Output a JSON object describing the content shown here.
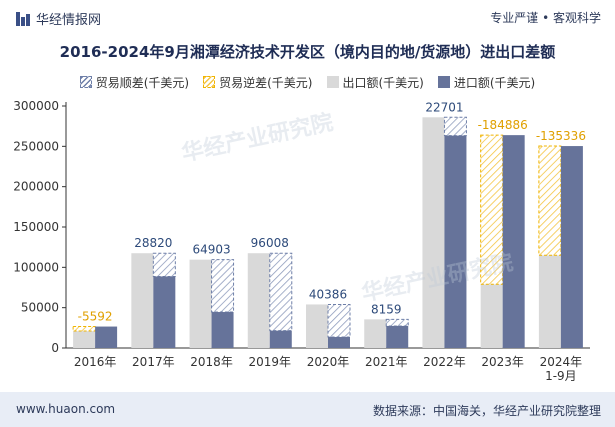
{
  "header": {
    "brand": "华经情报网",
    "slogan": "专业严谨 • 客观科学"
  },
  "footer": {
    "site": "www.huaon.com",
    "source": "数据来源：中国海关，华经产业研究院整理"
  },
  "watermark": "华经产业研究院",
  "colors": {
    "export": "#d9d9d9",
    "import": "#66739a",
    "surplus": "#6e7fa8",
    "deficit": "#f0b400",
    "label_surplus": "#2d4a7a",
    "label_deficit": "#e0a000"
  },
  "chart_data": {
    "type": "bar",
    "title": "2016-2024年9月湘潭经济技术开发区（境内目的地/货源地）进出口差额",
    "legend_position": "top",
    "categories": [
      "2016年",
      "2017年",
      "2018年",
      "2019年",
      "2020年",
      "2021年",
      "2022年",
      "2023年",
      "2024年\n1-9月"
    ],
    "ylim": [
      0,
      300000
    ],
    "yticks": [
      0,
      50000,
      100000,
      150000,
      200000,
      250000,
      300000
    ],
    "grid": false,
    "legend": {
      "surplus": "贸易顺差(千美元)",
      "deficit": "贸易逆差(千美元)",
      "export": "出口额(千美元)",
      "import": "进口额(千美元)"
    },
    "series": [
      {
        "name": "出口额(千美元)",
        "values": [
          21000,
          117500,
          109500,
          117500,
          54000,
          35500,
          286000,
          79000,
          115000
        ]
      },
      {
        "name": "进口额(千美元)",
        "values": [
          26592,
          88680,
          44597,
          21492,
          13614,
          27341,
          263299,
          263886,
          250336
        ]
      }
    ],
    "balance": {
      "values": [
        -5592,
        28820,
        64903,
        96008,
        40386,
        8159,
        22701,
        -184886,
        -135336
      ],
      "labels": [
        "-5592",
        "28820",
        "64903",
        "96008",
        "40386",
        "8159",
        "22701",
        "-184886",
        "-135336"
      ]
    }
  }
}
